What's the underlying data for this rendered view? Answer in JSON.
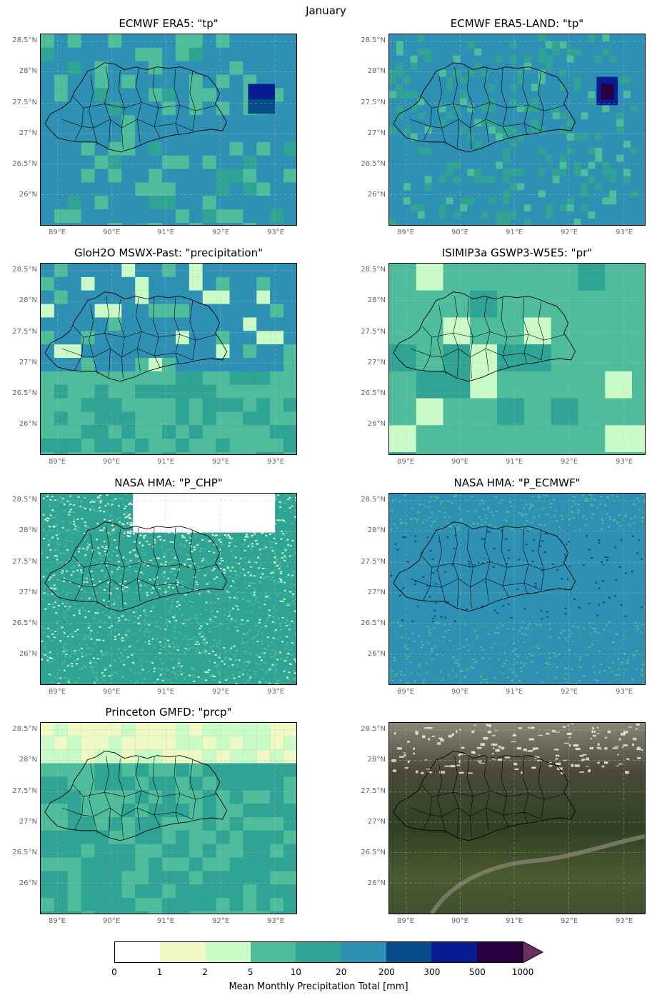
{
  "figure": {
    "title": "January"
  },
  "colorbar": {
    "label": "Mean Monthly Precipitation Total [mm]",
    "ticks": [
      "0",
      "1",
      "2",
      "5",
      "10",
      "20",
      "200",
      "300",
      "500",
      "1000"
    ],
    "colors": [
      "#ffffff",
      "#eef9c4",
      "#cafbc6",
      "#4fbd9c",
      "#2fa394",
      "#2e91b4",
      "#064c8b",
      "#0a1c91",
      "#2a0040"
    ],
    "extend_color": "#6b2f60"
  },
  "axes": {
    "lon_labels": [
      "89°E",
      "90°E",
      "91°E",
      "92°E",
      "93°E"
    ],
    "lat_labels": [
      "28.5°N",
      "28°N",
      "27.5°N",
      "27°N",
      "26.5°N",
      "26°N"
    ]
  },
  "panels": [
    {
      "title": "ECMWF ERA5: \"tp\"",
      "base_color": "#2e91b4",
      "style": "coarse-blue"
    },
    {
      "title": "ECMWF ERA5-LAND: \"tp\"",
      "base_color": "#2e91b4",
      "style": "fine-blue"
    },
    {
      "title": "GloH2O MSWX-Past: \"precipitation\"",
      "base_color": "#2e91b4",
      "style": "coarse-blue-green"
    },
    {
      "title": "ISIMIP3a GSWP3-W5E5: \"pr\"",
      "base_color": "#4fbd9c",
      "style": "coarse-green"
    },
    {
      "title": "NASA HMA: \"P_CHP\"",
      "base_color": "#2fa394",
      "style": "speckle-green"
    },
    {
      "title": "NASA HMA: \"P_ECMWF\"",
      "base_color": "#2e91b4",
      "style": "speckle-blue"
    },
    {
      "title": "Princeton GMFD: \"prcp\"",
      "base_color": "#2fa394",
      "style": "coarse-teal"
    },
    {
      "title": "",
      "base_color": "#3a4a30",
      "style": "satellite"
    }
  ]
}
